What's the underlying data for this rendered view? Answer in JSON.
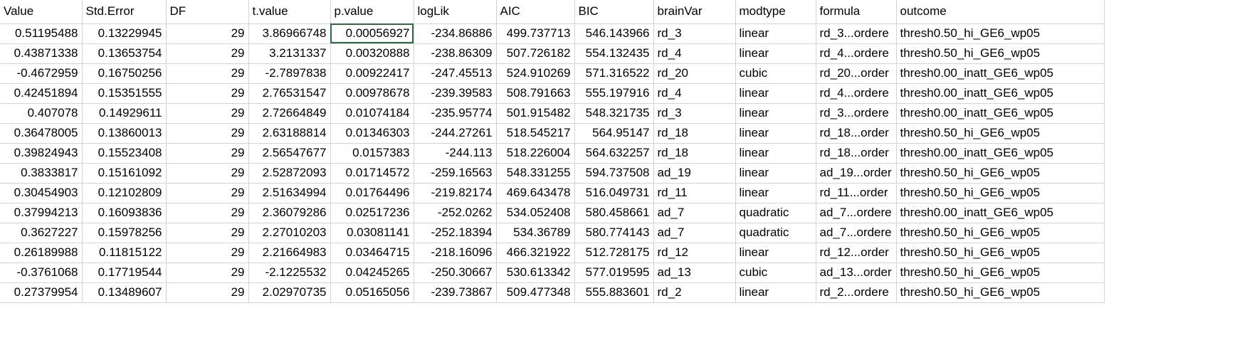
{
  "sheet": {
    "headers": [
      "Value",
      "Std.Error",
      "DF",
      "t.value",
      "p.value",
      "logLik",
      "AIC",
      "BIC",
      "brainVar",
      "modtype",
      "formula",
      "outcome"
    ],
    "rows": [
      [
        "0.51195488",
        "0.13229945",
        "29",
        "3.86966748",
        "0.00056927",
        "-234.86886",
        "499.737713",
        "546.143966",
        "rd_3",
        "linear",
        "rd_3...ordere",
        "thresh0.50_hi_GE6_wp05"
      ],
      [
        "0.43871338",
        "0.13653754",
        "29",
        "3.2131337",
        "0.00320888",
        "-238.86309",
        "507.726182",
        "554.132435",
        "rd_4",
        "linear",
        "rd_4...ordere",
        "thresh0.50_hi_GE6_wp05"
      ],
      [
        "-0.4672959",
        "0.16750256",
        "29",
        "-2.7897838",
        "0.00922417",
        "-247.45513",
        "524.910269",
        "571.316522",
        "rd_20",
        "cubic",
        "rd_20...order",
        "thresh0.00_inatt_GE6_wp05"
      ],
      [
        "0.42451894",
        "0.15351555",
        "29",
        "2.76531547",
        "0.00978678",
        "-239.39583",
        "508.791663",
        "555.197916",
        "rd_4",
        "linear",
        "rd_4...ordere",
        "thresh0.00_inatt_GE6_wp05"
      ],
      [
        "0.407078",
        "0.14929611",
        "29",
        "2.72664849",
        "0.01074184",
        "-235.95774",
        "501.915482",
        "548.321735",
        "rd_3",
        "linear",
        "rd_3...ordere",
        "thresh0.00_inatt_GE6_wp05"
      ],
      [
        "0.36478005",
        "0.13860013",
        "29",
        "2.63188814",
        "0.01346303",
        "-244.27261",
        "518.545217",
        "564.95147",
        "rd_18",
        "linear",
        "rd_18...order",
        "thresh0.50_hi_GE6_wp05"
      ],
      [
        "0.39824943",
        "0.15523408",
        "29",
        "2.56547677",
        "0.0157383",
        "-244.113",
        "518.226004",
        "564.632257",
        "rd_18",
        "linear",
        "rd_18...order",
        "thresh0.00_inatt_GE6_wp05"
      ],
      [
        "0.3833817",
        "0.15161092",
        "29",
        "2.52872093",
        "0.01714572",
        "-259.16563",
        "548.331255",
        "594.737508",
        "ad_19",
        "linear",
        "ad_19...order",
        "thresh0.50_hi_GE6_wp05"
      ],
      [
        "0.30454903",
        "0.12102809",
        "29",
        "2.51634994",
        "0.01764496",
        "-219.82174",
        "469.643478",
        "516.049731",
        "rd_11",
        "linear",
        "rd_11...order",
        "thresh0.50_hi_GE6_wp05"
      ],
      [
        "0.37994213",
        "0.16093836",
        "29",
        "2.36079286",
        "0.02517236",
        "-252.0262",
        "534.052408",
        "580.458661",
        "ad_7",
        "quadratic",
        "ad_7...ordere",
        "thresh0.00_inatt_GE6_wp05"
      ],
      [
        "0.3627227",
        "0.15978256",
        "29",
        "2.27010203",
        "0.03081141",
        "-252.18394",
        "534.36789",
        "580.774143",
        "ad_7",
        "quadratic",
        "ad_7...ordere",
        "thresh0.50_hi_GE6_wp05"
      ],
      [
        "0.26189988",
        "0.11815122",
        "29",
        "2.21664983",
        "0.03464715",
        "-218.16096",
        "466.321922",
        "512.728175",
        "rd_12",
        "linear",
        "rd_12...order",
        "thresh0.50_hi_GE6_wp05"
      ],
      [
        "-0.3761068",
        "0.17719544",
        "29",
        "-2.1225532",
        "0.04245265",
        "-250.30667",
        "530.613342",
        "577.019595",
        "ad_13",
        "cubic",
        "ad_13...order",
        "thresh0.50_hi_GE6_wp05"
      ],
      [
        "0.27379954",
        "0.13489607",
        "29",
        "2.02970735",
        "0.05165056",
        "-239.73867",
        "509.477348",
        "555.883601",
        "rd_2",
        "linear",
        "rd_2...ordere",
        "thresh0.50_hi_GE6_wp05"
      ]
    ],
    "selected_cell": "p.value row 1"
  }
}
